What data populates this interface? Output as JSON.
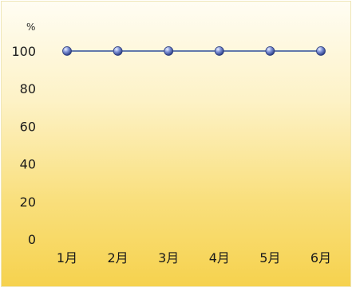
{
  "chart_data": {
    "type": "line",
    "categories": [
      "1月",
      "2月",
      "3月",
      "4月",
      "5月",
      "6月"
    ],
    "series": [
      {
        "values": [
          100,
          100,
          100,
          100,
          100,
          100
        ]
      }
    ],
    "ylabel": "%",
    "ylim": [
      0,
      100
    ],
    "yticks": [
      100,
      80,
      60,
      40,
      20,
      0
    ],
    "grid": false,
    "line_color": "#2f4f9c",
    "marker_color": "#5f76c9"
  }
}
